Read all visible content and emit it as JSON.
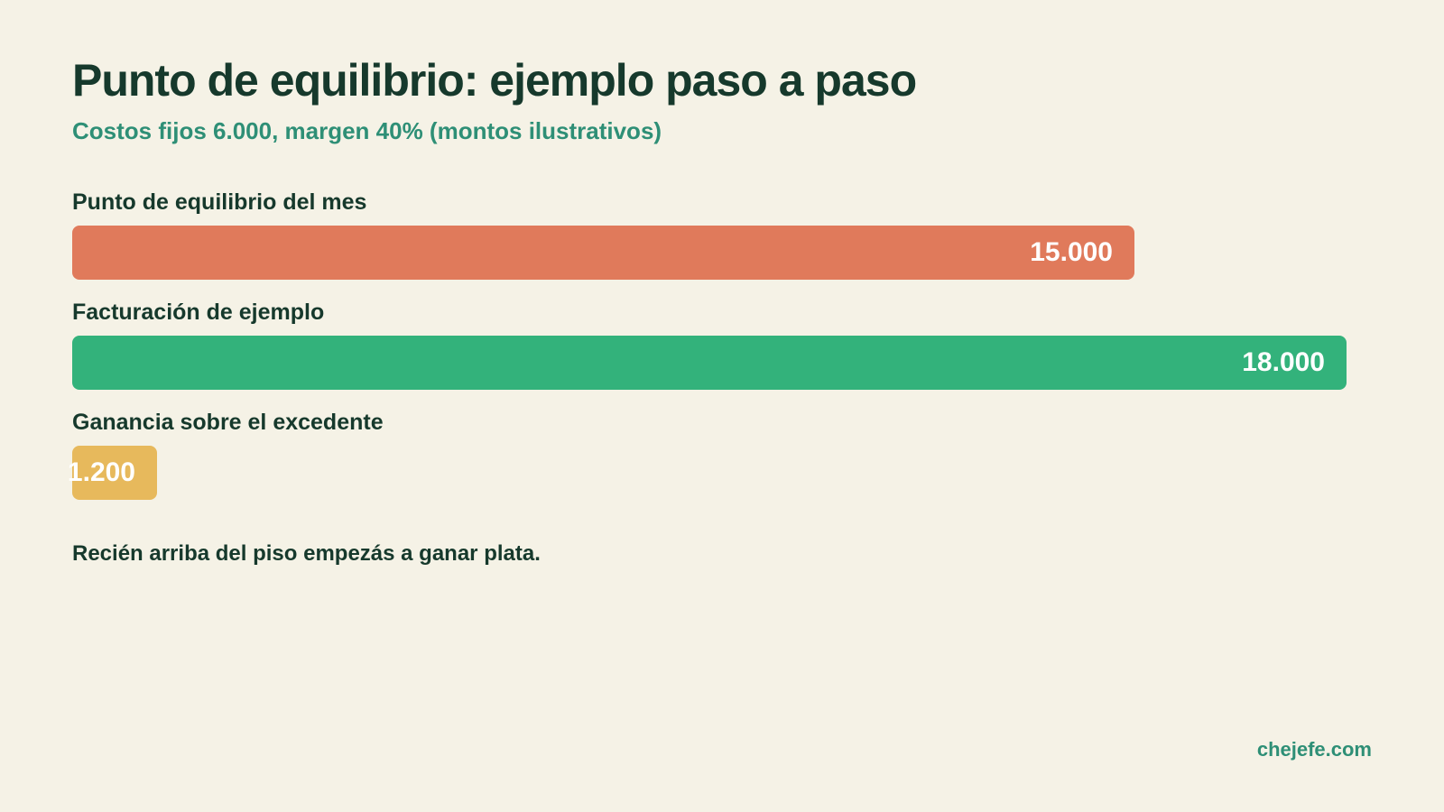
{
  "chart_data": {
    "type": "bar",
    "orientation": "horizontal",
    "title": "Punto de equilibrio: ejemplo paso a paso",
    "subtitle": "Costos fijos 6.000, margen 40% (montos ilustrativos)",
    "categories": [
      "Punto de equilibrio del mes",
      "Facturación de ejemplo",
      "Ganancia sobre el excedente"
    ],
    "values": [
      15000,
      18000,
      1200
    ],
    "value_labels": [
      "15.000",
      "18.000",
      "1.200"
    ],
    "colors": [
      "#e07a5b",
      "#33b27b",
      "#e7b95c"
    ],
    "xlim": [
      0,
      18000
    ],
    "grid": false,
    "legend": "none"
  },
  "note": "Recién arriba del piso empezás a ganar plata.",
  "brand": "chejefe.com"
}
